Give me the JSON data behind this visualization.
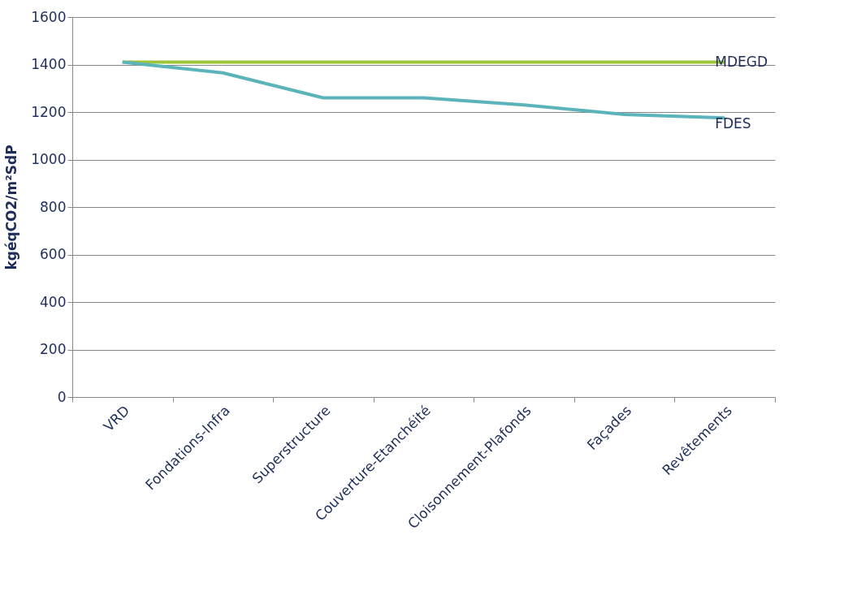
{
  "chart_data": {
    "type": "line",
    "ylabel": "kgéqCO2/m²SdP",
    "categories": [
      "VRD",
      "Fondations-Infra",
      "Superstructure",
      "Couverture-Etanchéité",
      "Cloisonnement-Plafonds",
      "Façades",
      "Revêtements"
    ],
    "series": [
      {
        "name": "MDEGD",
        "color": "#9dc43a",
        "values": [
          1410,
          1410,
          1410,
          1410,
          1410,
          1410,
          1410
        ]
      },
      {
        "name": "FDES",
        "color": "#5ab4b9",
        "values": [
          1410,
          1365,
          1260,
          1260,
          1230,
          1190,
          1175
        ]
      }
    ],
    "ylim": [
      0,
      1600
    ],
    "yticks": [
      0,
      200,
      400,
      600,
      800,
      1000,
      1200,
      1400,
      1600
    ],
    "grid": "y",
    "marker": "none",
    "line_style": "solid"
  }
}
